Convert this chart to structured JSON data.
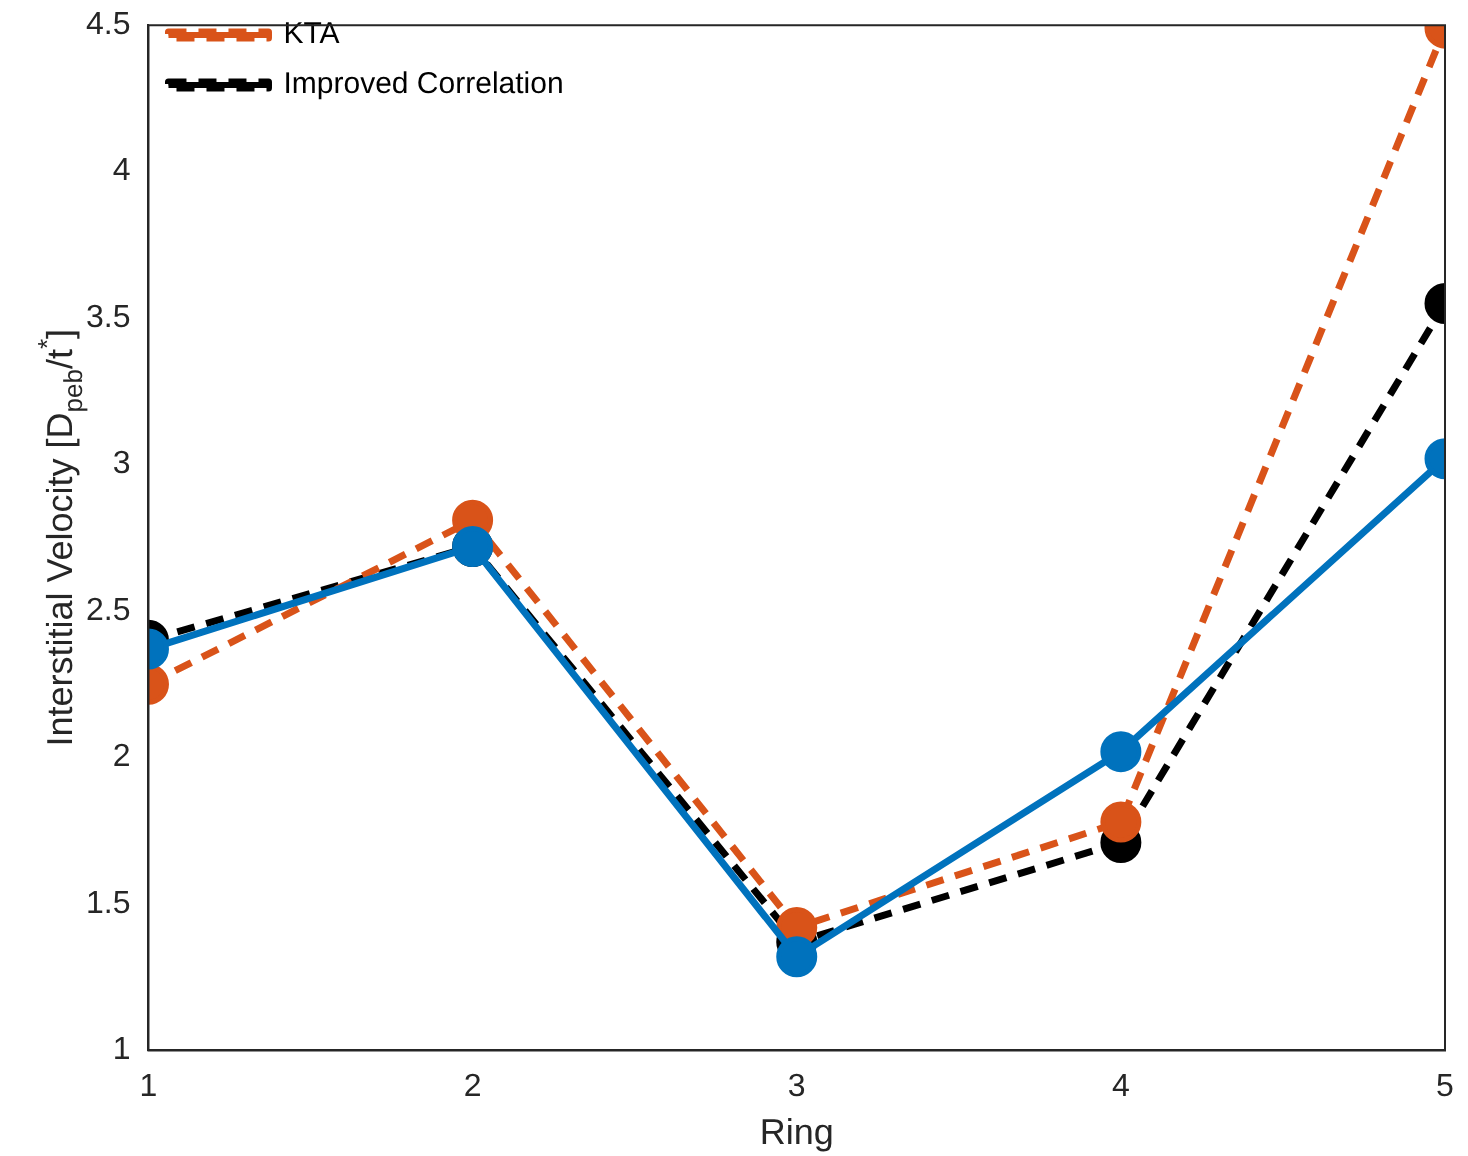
{
  "chart_data": {
    "type": "line",
    "xlabel": "Ring",
    "ylabel": "Interstitial Velocity [D$_{peb}$/t$^{*}$]",
    "x": [
      1,
      2,
      3,
      4,
      5
    ],
    "xlim": [
      1,
      5
    ],
    "xticks": [
      1,
      2,
      3,
      4,
      5
    ],
    "ylim": [
      1,
      4.5
    ],
    "yticks": [
      1,
      1.5,
      2,
      2.5,
      3,
      3.5,
      4,
      4.5
    ],
    "grid": false,
    "legend": "top left",
    "marker": "circle",
    "series": [
      {
        "color": "#0072bd",
        "line_style": "solid",
        "values": [
          2.37,
          2.72,
          1.32,
          2.02,
          3.02
        ]
      },
      {
        "name": "KTA",
        "color": "#d95319",
        "line_style": "dashed",
        "values": [
          2.25,
          2.81,
          1.42,
          1.78,
          4.49
        ]
      },
      {
        "name": "Improved Correlation",
        "color": "#000000",
        "line_style": "dashed",
        "values": [
          2.4,
          2.72,
          1.37,
          1.71,
          3.55
        ]
      }
    ]
  }
}
